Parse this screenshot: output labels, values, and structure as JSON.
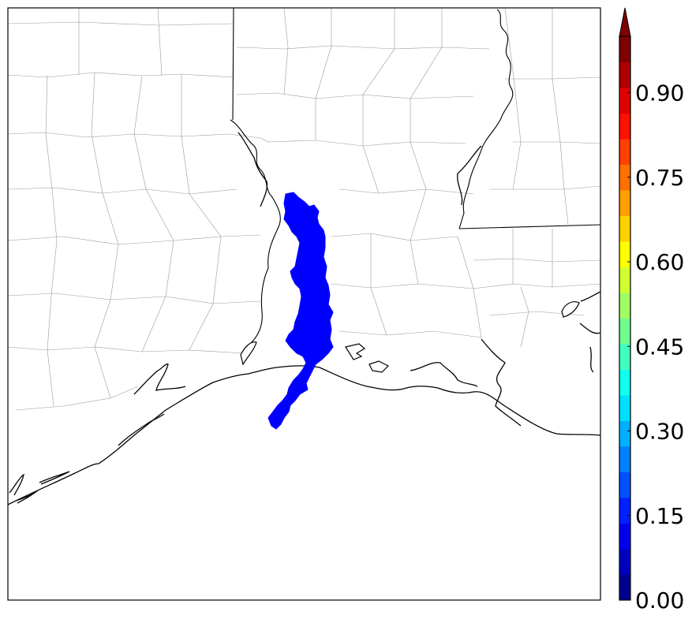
{
  "colorbar": {
    "min": 0.0,
    "max": 1.0,
    "tick_labels": [
      "0.00",
      "0.15",
      "0.30",
      "0.45",
      "0.60",
      "0.75",
      "0.90"
    ],
    "tick_values": [
      0.0,
      0.15,
      0.3,
      0.45,
      0.6,
      0.75,
      0.9
    ],
    "extend": "max",
    "colors": [
      "#00008f",
      "#0000bf",
      "#0000ef",
      "#0020ff",
      "#0050ff",
      "#0080ff",
      "#00b0ff",
      "#00e0ff",
      "#10ffef",
      "#40ffbf",
      "#70ff8f",
      "#a0ff60",
      "#d0ff30",
      "#ffff00",
      "#ffd000",
      "#ffa000",
      "#ff7000",
      "#ff4000",
      "#ff1000",
      "#df0000",
      "#af0000",
      "#7f0000"
    ]
  },
  "map": {
    "plume_color": "#0000ff",
    "plume_value": 0.05
  }
}
